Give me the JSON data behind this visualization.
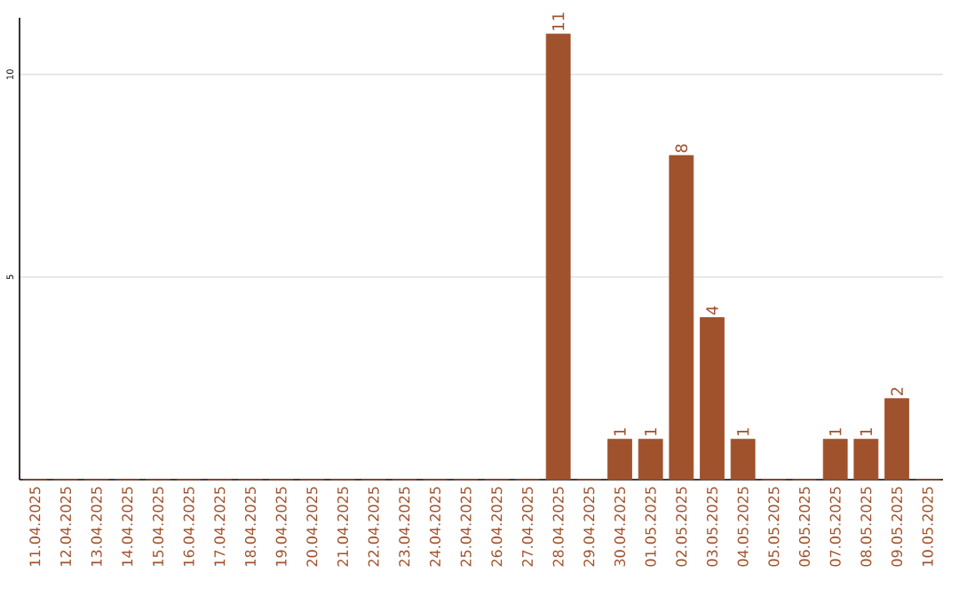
{
  "chart_data": {
    "type": "bar",
    "categories": [
      "11.04.2025",
      "12.04.2025",
      "13.04.2025",
      "14.04.2025",
      "15.04.2025",
      "16.04.2025",
      "17.04.2025",
      "18.04.2025",
      "19.04.2025",
      "20.04.2025",
      "21.04.2025",
      "22.04.2025",
      "23.04.2025",
      "24.04.2025",
      "25.04.2025",
      "26.04.2025",
      "27.04.2025",
      "28.04.2025",
      "29.04.2025",
      "30.04.2025",
      "01.05.2025",
      "02.05.2025",
      "03.05.2025",
      "04.05.2025",
      "05.05.2025",
      "06.05.2025",
      "07.05.2025",
      "08.05.2025",
      "09.05.2025",
      "10.05.2025"
    ],
    "values": [
      0,
      0,
      0,
      0,
      0,
      0,
      0,
      0,
      0,
      0,
      0,
      0,
      0,
      0,
      0,
      0,
      0,
      11,
      0,
      1,
      1,
      8,
      4,
      1,
      0,
      0,
      1,
      1,
      2,
      0
    ],
    "value_labels": [
      null,
      null,
      null,
      null,
      null,
      null,
      null,
      null,
      null,
      null,
      null,
      null,
      null,
      null,
      null,
      null,
      null,
      "11",
      null,
      "1",
      "1",
      "8",
      "4",
      "1",
      null,
      null,
      "1",
      "1",
      "2",
      null
    ],
    "color": "#a0522d",
    "ylim": [
      0,
      11.4
    ],
    "yticks": [
      5,
      10
    ],
    "grid": "y"
  }
}
